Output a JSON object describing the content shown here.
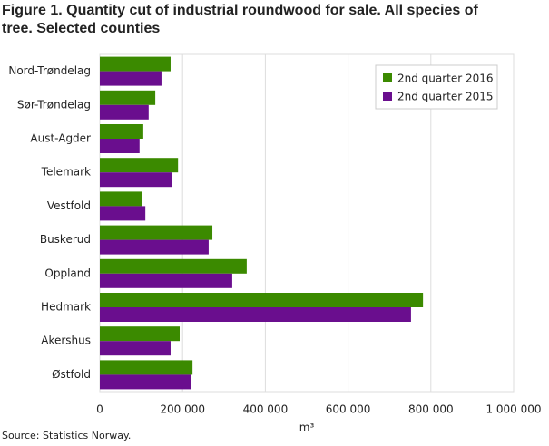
{
  "chart_data": {
    "type": "hbar",
    "title": "Figure 1. Quantity cut of industrial roundwood for sale. All species of tree. Selected counties",
    "source": "Source: Statistics Norway.",
    "x_label": "m³",
    "categories": [
      "Nord-Trøndelag",
      "Sør-Trøndelag",
      "Aust-Agder",
      "Telemark",
      "Vestfold",
      "Buskerud",
      "Oppland",
      "Hedmark",
      "Akershus",
      "Østfold"
    ],
    "series": [
      {
        "name": "2nd quarter 2016",
        "color": "#3b8a00",
        "values": [
          171000,
          134000,
          105000,
          189000,
          101000,
          272000,
          355000,
          781000,
          193000,
          224000
        ]
      },
      {
        "name": "2nd quarter 2015",
        "color": "#6a0e8e",
        "values": [
          149000,
          118000,
          96000,
          175000,
          110000,
          263000,
          320000,
          752000,
          171000,
          221000
        ]
      }
    ],
    "xlim": [
      0,
      1000000
    ],
    "xticks": [
      0,
      {
        "value": 200000,
        "label": "200 000"
      },
      {
        "value": 400000,
        "label": "400 000"
      },
      {
        "value": 600000,
        "label": "600 000"
      },
      {
        "value": 800000,
        "label": "800 000"
      },
      {
        "value": 1000000,
        "label": "1 000 000"
      }
    ],
    "grid": true,
    "legend": "top-right"
  }
}
